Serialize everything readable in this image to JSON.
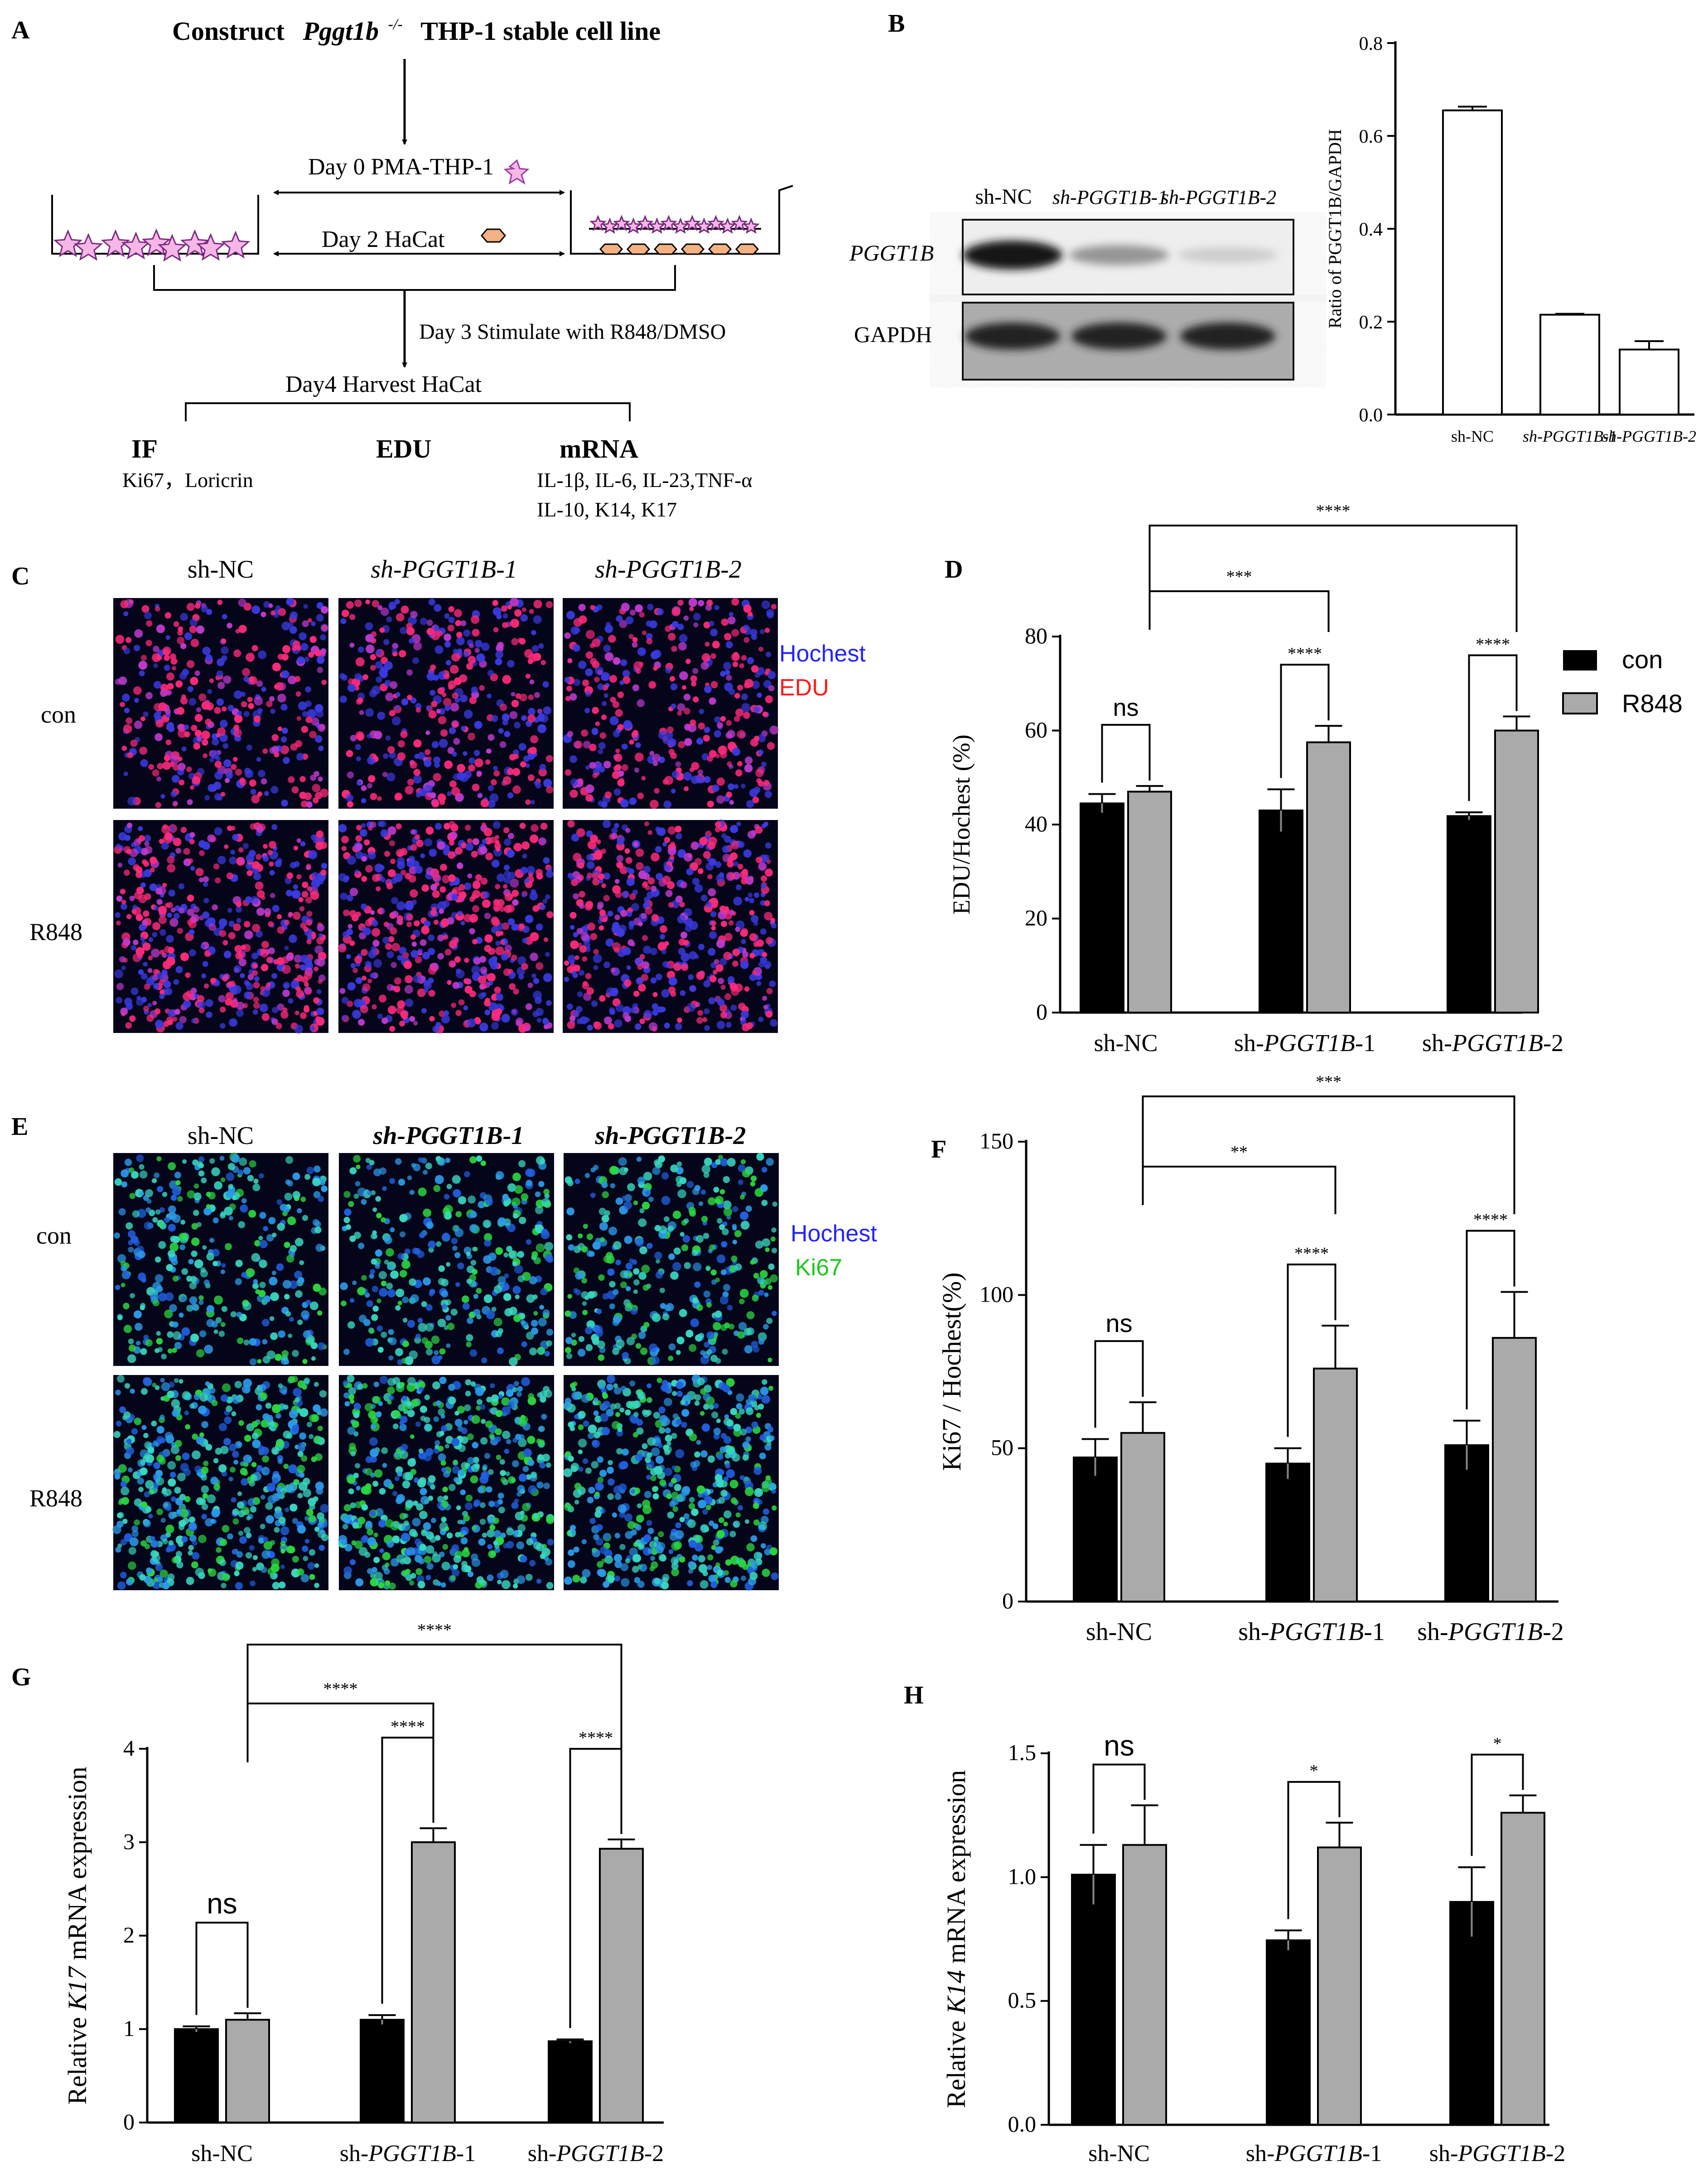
{
  "panels": {
    "A": {
      "letter": "A",
      "title_prefix": "Construct",
      "title_gene": "Pggt1b",
      "title_sup": "-/-",
      "title_suffix": "THP-1 stable cell line",
      "day0": "Day 0 PMA-THP-1",
      "day2": "Day 2 HaCat",
      "day3": "Day 3  Stimulate with R848/DMSO",
      "day4": "Day4 Harvest HaCat",
      "out_if": "IF",
      "out_if_sub": "Ki67，Loricrin",
      "out_edu": "EDU",
      "out_mrna": "mRNA",
      "out_mrna_sub1": "IL-1β, IL-6, IL-23,TNF-α",
      "out_mrna_sub2": "IL-10, K14, K17"
    },
    "B": {
      "letter": "B",
      "blot_lanes": [
        "sh-NC",
        "sh-PGGT1B-1",
        "sh-PGGT1B-2"
      ],
      "blot_rows": [
        "PGGT1B",
        "GAPDH"
      ],
      "band_intensity_pggt1b": [
        1.0,
        0.45,
        0.2
      ]
    },
    "C": {
      "letter": "C",
      "cols": [
        "sh-NC",
        "sh-PGGT1B-1",
        "sh-PGGT1B-2"
      ],
      "rows": [
        "con",
        "R848"
      ],
      "legend": [
        "Hochest",
        "EDU"
      ],
      "legend_colors": [
        "#2323ff",
        "#ff1a1a"
      ]
    },
    "D": {
      "letter": "D"
    },
    "E": {
      "letter": "E",
      "cols": [
        "sh-NC",
        "sh-PGGT1B-1",
        "sh-PGGT1B-2"
      ],
      "rows": [
        "con",
        "R848"
      ],
      "legend": [
        "Hochest",
        "Ki67"
      ],
      "legend_colors": [
        "#2323ff",
        "#1ec81e"
      ]
    },
    "F": {
      "letter": "F"
    },
    "G": {
      "letter": "G"
    },
    "H": {
      "letter": "H"
    }
  },
  "chart_data": [
    {
      "id": "B",
      "type": "bar",
      "categories": [
        "sh-NC",
        "sh-PGGT1B-1",
        "sh-PGGT1B-2"
      ],
      "values": [
        0.655,
        0.215,
        0.14
      ],
      "errors": [
        0.008,
        0.002,
        0.018
      ],
      "ylabel": "Ratio of PGGT1B/GAPDH",
      "ylim": [
        0,
        0.8
      ],
      "yticks": [
        "0.0",
        "0.2",
        "0.4",
        "0.6",
        "0.8"
      ],
      "ytick_values": [
        0,
        0.2,
        0.4,
        0.6,
        0.8
      ]
    },
    {
      "id": "D",
      "type": "bar",
      "categories": [
        "sh-NC",
        "sh-PGGT1B-1",
        "sh-PGGT1B-2"
      ],
      "category_prefix": "sh-",
      "category_genes": [
        "",
        "PGGT1B",
        "PGGT1B"
      ],
      "category_suffixes": [
        "",
        "-1",
        "-2"
      ],
      "series": [
        {
          "name": "con",
          "values": [
            44.5,
            43,
            41.8
          ],
          "errors": [
            2,
            4.5,
            0.8
          ]
        },
        {
          "name": "R848",
          "values": [
            47,
            57.5,
            60
          ],
          "errors": [
            1.2,
            3.5,
            3
          ]
        }
      ],
      "ylabel": "EDU/Hochest (%)",
      "ylim": [
        0,
        80
      ],
      "yticks": [
        "0",
        "20",
        "40",
        "60",
        "80"
      ],
      "ytick_values": [
        0,
        20,
        40,
        60,
        80
      ],
      "within_sig": [
        "ns",
        "****",
        "****"
      ],
      "between_sig": [
        "***",
        "****"
      ],
      "legend": [
        "con",
        "R848"
      ]
    },
    {
      "id": "F",
      "type": "bar",
      "categories": [
        "sh-NC",
        "sh-PGGT1B-1",
        "sh-PGGT1B-2"
      ],
      "category_prefix": "sh-",
      "category_genes": [
        "",
        "PGGT1B",
        "PGGT1B"
      ],
      "category_suffixes": [
        "",
        "-1",
        "-2"
      ],
      "series": [
        {
          "name": "con",
          "values": [
            47,
            45,
            51
          ],
          "errors": [
            6,
            5,
            8
          ]
        },
        {
          "name": "R848",
          "values": [
            55,
            76,
            86
          ],
          "errors": [
            10,
            14,
            15
          ]
        }
      ],
      "ylabel": "Ki67 / Hochest(%)",
      "ylim": [
        0,
        150
      ],
      "yticks": [
        "0",
        "50",
        "100",
        "150"
      ],
      "ytick_values": [
        0,
        50,
        100,
        150
      ],
      "within_sig": [
        "ns",
        "****",
        "****"
      ],
      "between_sig": [
        "**",
        "***"
      ]
    },
    {
      "id": "G",
      "type": "bar",
      "categories": [
        "sh-NC",
        "sh-PGGT1B-1",
        "sh-PGGT1B-2"
      ],
      "category_prefix": "sh-",
      "category_genes": [
        "",
        "PGGT1B",
        "PGGT1B"
      ],
      "category_suffixes": [
        "",
        "-1",
        "-2"
      ],
      "series": [
        {
          "name": "con",
          "values": [
            1.0,
            1.1,
            0.87
          ],
          "errors": [
            0.03,
            0.05,
            0.02
          ]
        },
        {
          "name": "R848",
          "values": [
            1.1,
            3.0,
            2.93
          ],
          "errors": [
            0.07,
            0.15,
            0.1
          ]
        }
      ],
      "ylabel_prefix": "Relative ",
      "ylabel_gene": "K17",
      "ylabel_suffix": " mRNA expression",
      "ylim": [
        0,
        4
      ],
      "yticks": [
        "0",
        "1",
        "2",
        "3",
        "4"
      ],
      "ytick_values": [
        0,
        1,
        2,
        3,
        4
      ],
      "within_sig": [
        "ns",
        "****",
        "****"
      ],
      "between_sig": [
        "****",
        "****"
      ]
    },
    {
      "id": "H",
      "type": "bar",
      "categories": [
        "sh-NC",
        "sh-PGGT1B-1",
        "sh-PGGT1B-2"
      ],
      "category_prefix": "sh-",
      "category_genes": [
        "",
        "PGGT1B",
        "PGGT1B"
      ],
      "category_suffixes": [
        "",
        "-1",
        "-2"
      ],
      "series": [
        {
          "name": "con",
          "values": [
            1.01,
            0.745,
            0.9
          ],
          "errors": [
            0.12,
            0.04,
            0.14
          ]
        },
        {
          "name": "R848",
          "values": [
            1.13,
            1.12,
            1.26
          ],
          "errors": [
            0.16,
            0.1,
            0.07
          ]
        }
      ],
      "ylabel_prefix": "Relative ",
      "ylabel_gene": "K14",
      "ylabel_suffix": " mRNA expression",
      "ylim": [
        0,
        1.5
      ],
      "yticks": [
        "0.0",
        "0.5",
        "1.0",
        "1.5"
      ],
      "ytick_values": [
        0,
        0.5,
        1.0,
        1.5
      ],
      "within_sig": [
        "ns",
        "*",
        "*"
      ]
    }
  ]
}
